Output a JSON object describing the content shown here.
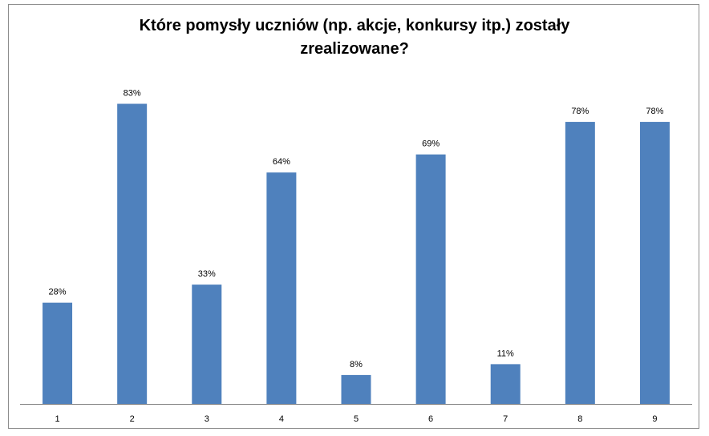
{
  "chart_data": {
    "type": "bar",
    "title": "Które pomysły uczniów (np. akcje, konkursy itp.) zostały zrealizowane?",
    "title_lines": [
      "Które pomysły uczniów (np. akcje, konkursy itp.) zostały",
      "zrealizowane?"
    ],
    "categories": [
      "1",
      "2",
      "3",
      "4",
      "5",
      "6",
      "7",
      "8",
      "9"
    ],
    "values": [
      28,
      83,
      33,
      64,
      8,
      69,
      11,
      78,
      78
    ],
    "data_labels": [
      "28%",
      "83%",
      "33%",
      "64%",
      "8%",
      "69%",
      "11%",
      "78%",
      "78%"
    ],
    "xlabel": "",
    "ylabel": "",
    "ylim": [
      0,
      100
    ],
    "grid": false,
    "legend": "none",
    "colors": {
      "bar": "#4F81BD",
      "axis": "#868686",
      "frame": "#8C8C8C"
    }
  }
}
